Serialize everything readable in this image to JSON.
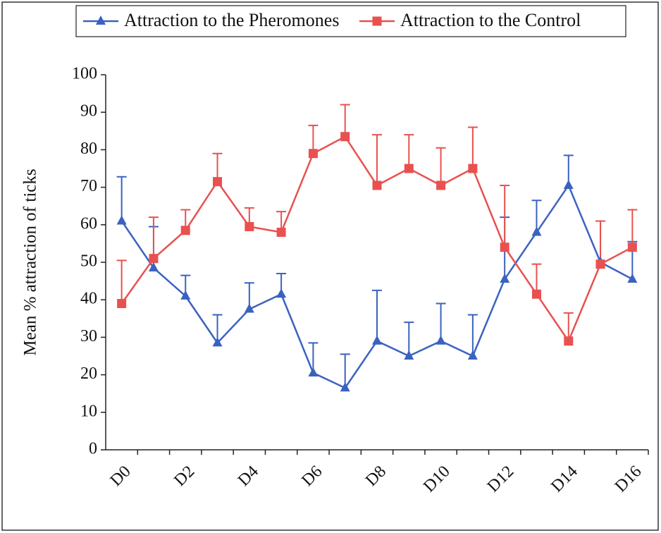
{
  "chart_data": {
    "type": "line",
    "ylabel": "Mean % attraction of ticks",
    "categories": [
      "D0",
      null,
      "D2",
      null,
      "D4",
      null,
      "D6",
      null,
      "D8",
      null,
      "D10",
      null,
      "D12",
      null,
      "D14",
      null,
      "D16"
    ],
    "series": [
      {
        "name": "Attraction to the Pheromones",
        "color": "#3a62c0",
        "marker": "triangle",
        "values": [
          61,
          48.5,
          41,
          28.5,
          37.5,
          41.5,
          20.5,
          16.5,
          29,
          25,
          29,
          25,
          45.5,
          58,
          70.5,
          50,
          45.5
        ],
        "errors": [
          11.8,
          11,
          5.5,
          7.5,
          7,
          5.5,
          8,
          9,
          13.5,
          9,
          10,
          11,
          16.5,
          8.5,
          8,
          11,
          10
        ]
      },
      {
        "name": "Attraction to the Control",
        "color": "#e8514f",
        "marker": "square",
        "values": [
          39,
          51,
          58.5,
          71.5,
          59.5,
          58,
          79,
          83.5,
          70.5,
          75,
          70.5,
          75,
          54,
          41.5,
          29,
          49.5,
          54
        ],
        "errors": [
          11.5,
          11,
          5.5,
          7.5,
          5,
          5.5,
          7.5,
          8.5,
          13.5,
          9,
          10,
          11,
          16.5,
          8,
          7.5,
          11.5,
          10
        ]
      }
    ],
    "ylim": [
      0,
      100
    ],
    "yticks": [
      0,
      10,
      20,
      30,
      40,
      50,
      60,
      70,
      80,
      90,
      100
    ],
    "legend": "top"
  }
}
